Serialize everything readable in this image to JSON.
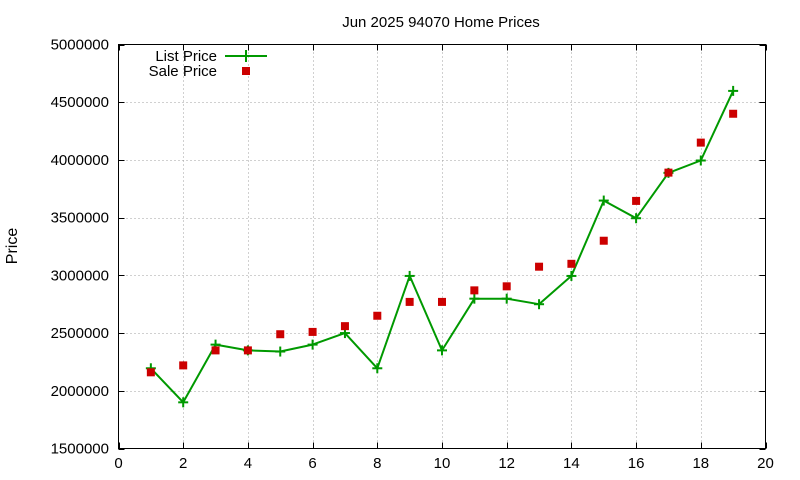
{
  "chart_data": {
    "type": "line",
    "title": "Jun 2025 94070 Home Prices",
    "xlabel": "",
    "ylabel": "Price",
    "xlim": [
      0,
      20
    ],
    "ylim": [
      1500000,
      5000000
    ],
    "x_ticks": [
      0,
      2,
      4,
      6,
      8,
      10,
      12,
      14,
      16,
      18,
      20
    ],
    "y_ticks": [
      1500000,
      2000000,
      2500000,
      3000000,
      3500000,
      4000000,
      4500000,
      5000000
    ],
    "x_tick_labels": [
      "0",
      "2",
      "4",
      "6",
      "8",
      "10",
      "12",
      "14",
      "16",
      "18",
      "20"
    ],
    "y_tick_labels": [
      "1500000",
      "2000000",
      "2500000",
      "3000000",
      "3500000",
      "4000000",
      "4500000",
      "5000000"
    ],
    "grid": true,
    "legend_position": "top-left",
    "series": [
      {
        "name": "List Price",
        "style": "line-plus",
        "color": "#009900",
        "x": [
          1,
          2,
          3,
          4,
          5,
          6,
          7,
          8,
          9,
          10,
          11,
          12,
          13,
          14,
          15,
          16,
          17,
          18,
          19
        ],
        "y": [
          2195000,
          1900000,
          2400000,
          2350000,
          2340000,
          2400000,
          2500000,
          2195000,
          2995000,
          2350000,
          2798000,
          2798000,
          2750000,
          2995000,
          3648000,
          3495000,
          3888000,
          3995000,
          4598000
        ]
      },
      {
        "name": "Sale Price",
        "style": "square-points",
        "color": "#cc0000",
        "x": [
          1,
          2,
          3,
          4,
          5,
          6,
          7,
          8,
          9,
          10,
          11,
          12,
          13,
          14,
          15,
          16,
          17,
          18,
          19
        ],
        "y": [
          2160000,
          2220000,
          2350000,
          2350000,
          2490000,
          2510000,
          2560000,
          2650000,
          2770000,
          2770000,
          2870000,
          2905000,
          3075000,
          3100000,
          3300000,
          3645000,
          3890000,
          4150000,
          4400000
        ]
      }
    ]
  }
}
